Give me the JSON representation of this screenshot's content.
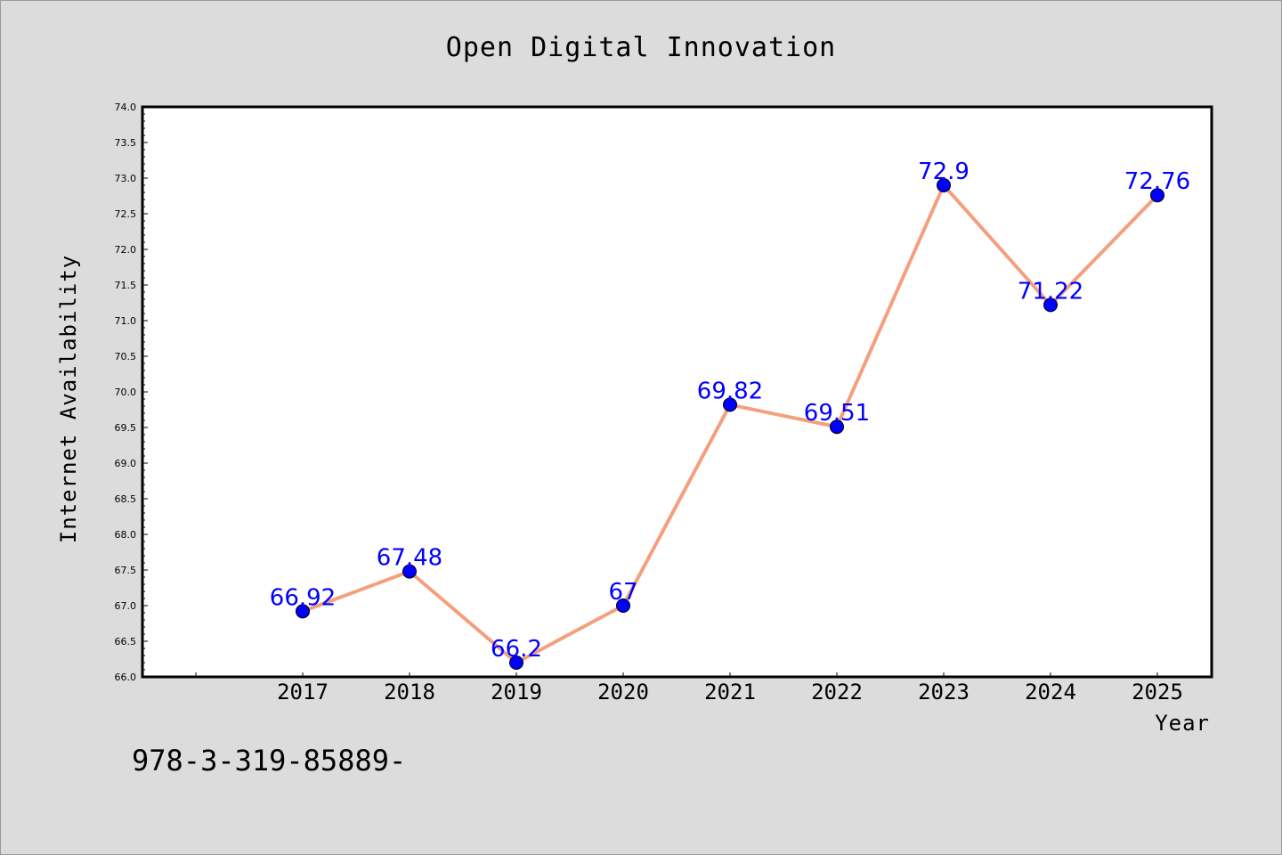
{
  "chart_data": {
    "type": "line",
    "title": "Open Digital Innovation",
    "xlabel": "Year",
    "ylabel": "Internet Availability",
    "categories": [
      "2017",
      "2018",
      "2019",
      "2020",
      "2021",
      "2022",
      "2023",
      "2024",
      "2025"
    ],
    "series": [
      {
        "values": [
          66.92,
          67.48,
          66.2,
          67,
          69.82,
          69.51,
          72.9,
          71.22,
          72.76
        ],
        "labels": [
          "66.92",
          "67.48",
          "66.2",
          "67",
          "69.82",
          "69.51",
          "72.9",
          "71.22",
          "72.76"
        ],
        "line_color": "#f4a07e",
        "marker_color": "#0000ff"
      }
    ],
    "ylim": [
      66.0,
      74.0
    ],
    "yticks": [
      "66.0",
      "66.5",
      "67.0",
      "67.5",
      "68.0",
      "68.5",
      "69.0",
      "69.5",
      "70.0",
      "70.5",
      "71.0",
      "71.5",
      "72.0",
      "72.5",
      "73.0",
      "73.5",
      "74.0"
    ],
    "grid": false,
    "legend": "none"
  },
  "footnote": "978-3-319-85889-",
  "colors": {
    "background": "#dcdcdc",
    "plot_background": "#ffffff",
    "line": "#f4a07e",
    "marker": "#0000ff",
    "data_label": "#0000ff"
  }
}
